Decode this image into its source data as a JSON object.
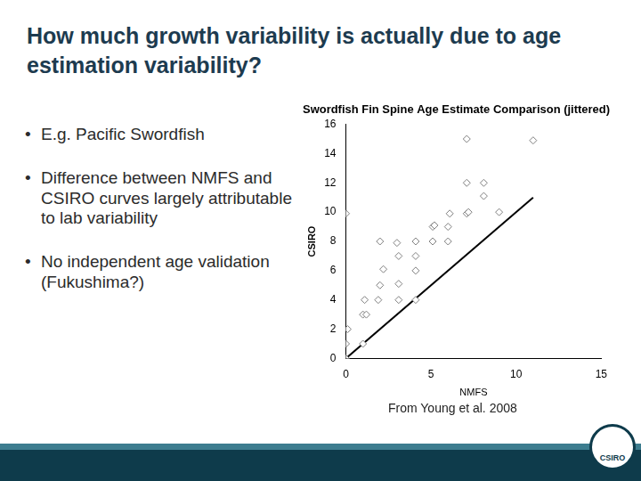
{
  "slide": {
    "title": "How much growth variability is actually due to age estimation variability?",
    "bullets": [
      "E.g. Pacific Swordfish",
      "Difference between NMFS and CSIRO curves largely attributable to lab variability",
      "No independent age validation (Fukushima?)"
    ],
    "source": "From Young et al. 2008",
    "logo": "CSIRO"
  },
  "chart_data": {
    "type": "scatter",
    "title": "Swordfish Fin Spine Age Estimate Comparison (jittered)",
    "x_label": "NMFS",
    "y_label": "CSIRO",
    "xlim": [
      0,
      15
    ],
    "xticks": [
      0,
      5,
      10,
      15
    ],
    "ylim": [
      0,
      16
    ],
    "yticks": [
      0,
      2,
      4,
      6,
      8,
      10,
      12,
      14,
      16
    ],
    "grid": false,
    "series": [
      {
        "type": "scatter",
        "marker": "diamond",
        "color": "#7f7f7f",
        "x": [
          0,
          0,
          0.1,
          1,
          1,
          1.2,
          1.1,
          1.9,
          2,
          3.1,
          3.1,
          2.2,
          4.1,
          4.1,
          3.1,
          4.1,
          3,
          4.1,
          2,
          5.1,
          5.1,
          6,
          6,
          5.2,
          6.1,
          7.1,
          7.2,
          8.1,
          7.1,
          8.1,
          9,
          7.1,
          11,
          0
        ],
        "values": [
          0,
          1,
          2,
          1,
          3,
          3,
          4,
          4,
          5,
          5.1,
          4,
          6.1,
          6,
          4,
          7,
          7,
          7.9,
          8,
          8,
          8,
          9,
          9,
          8,
          9.1,
          9.9,
          9.9,
          10,
          11.1,
          12,
          12,
          10,
          15,
          14.9,
          9.9
        ]
      },
      {
        "type": "line",
        "color": "#000000",
        "x": [
          0,
          11
        ],
        "values": [
          0,
          11
        ]
      }
    ]
  }
}
